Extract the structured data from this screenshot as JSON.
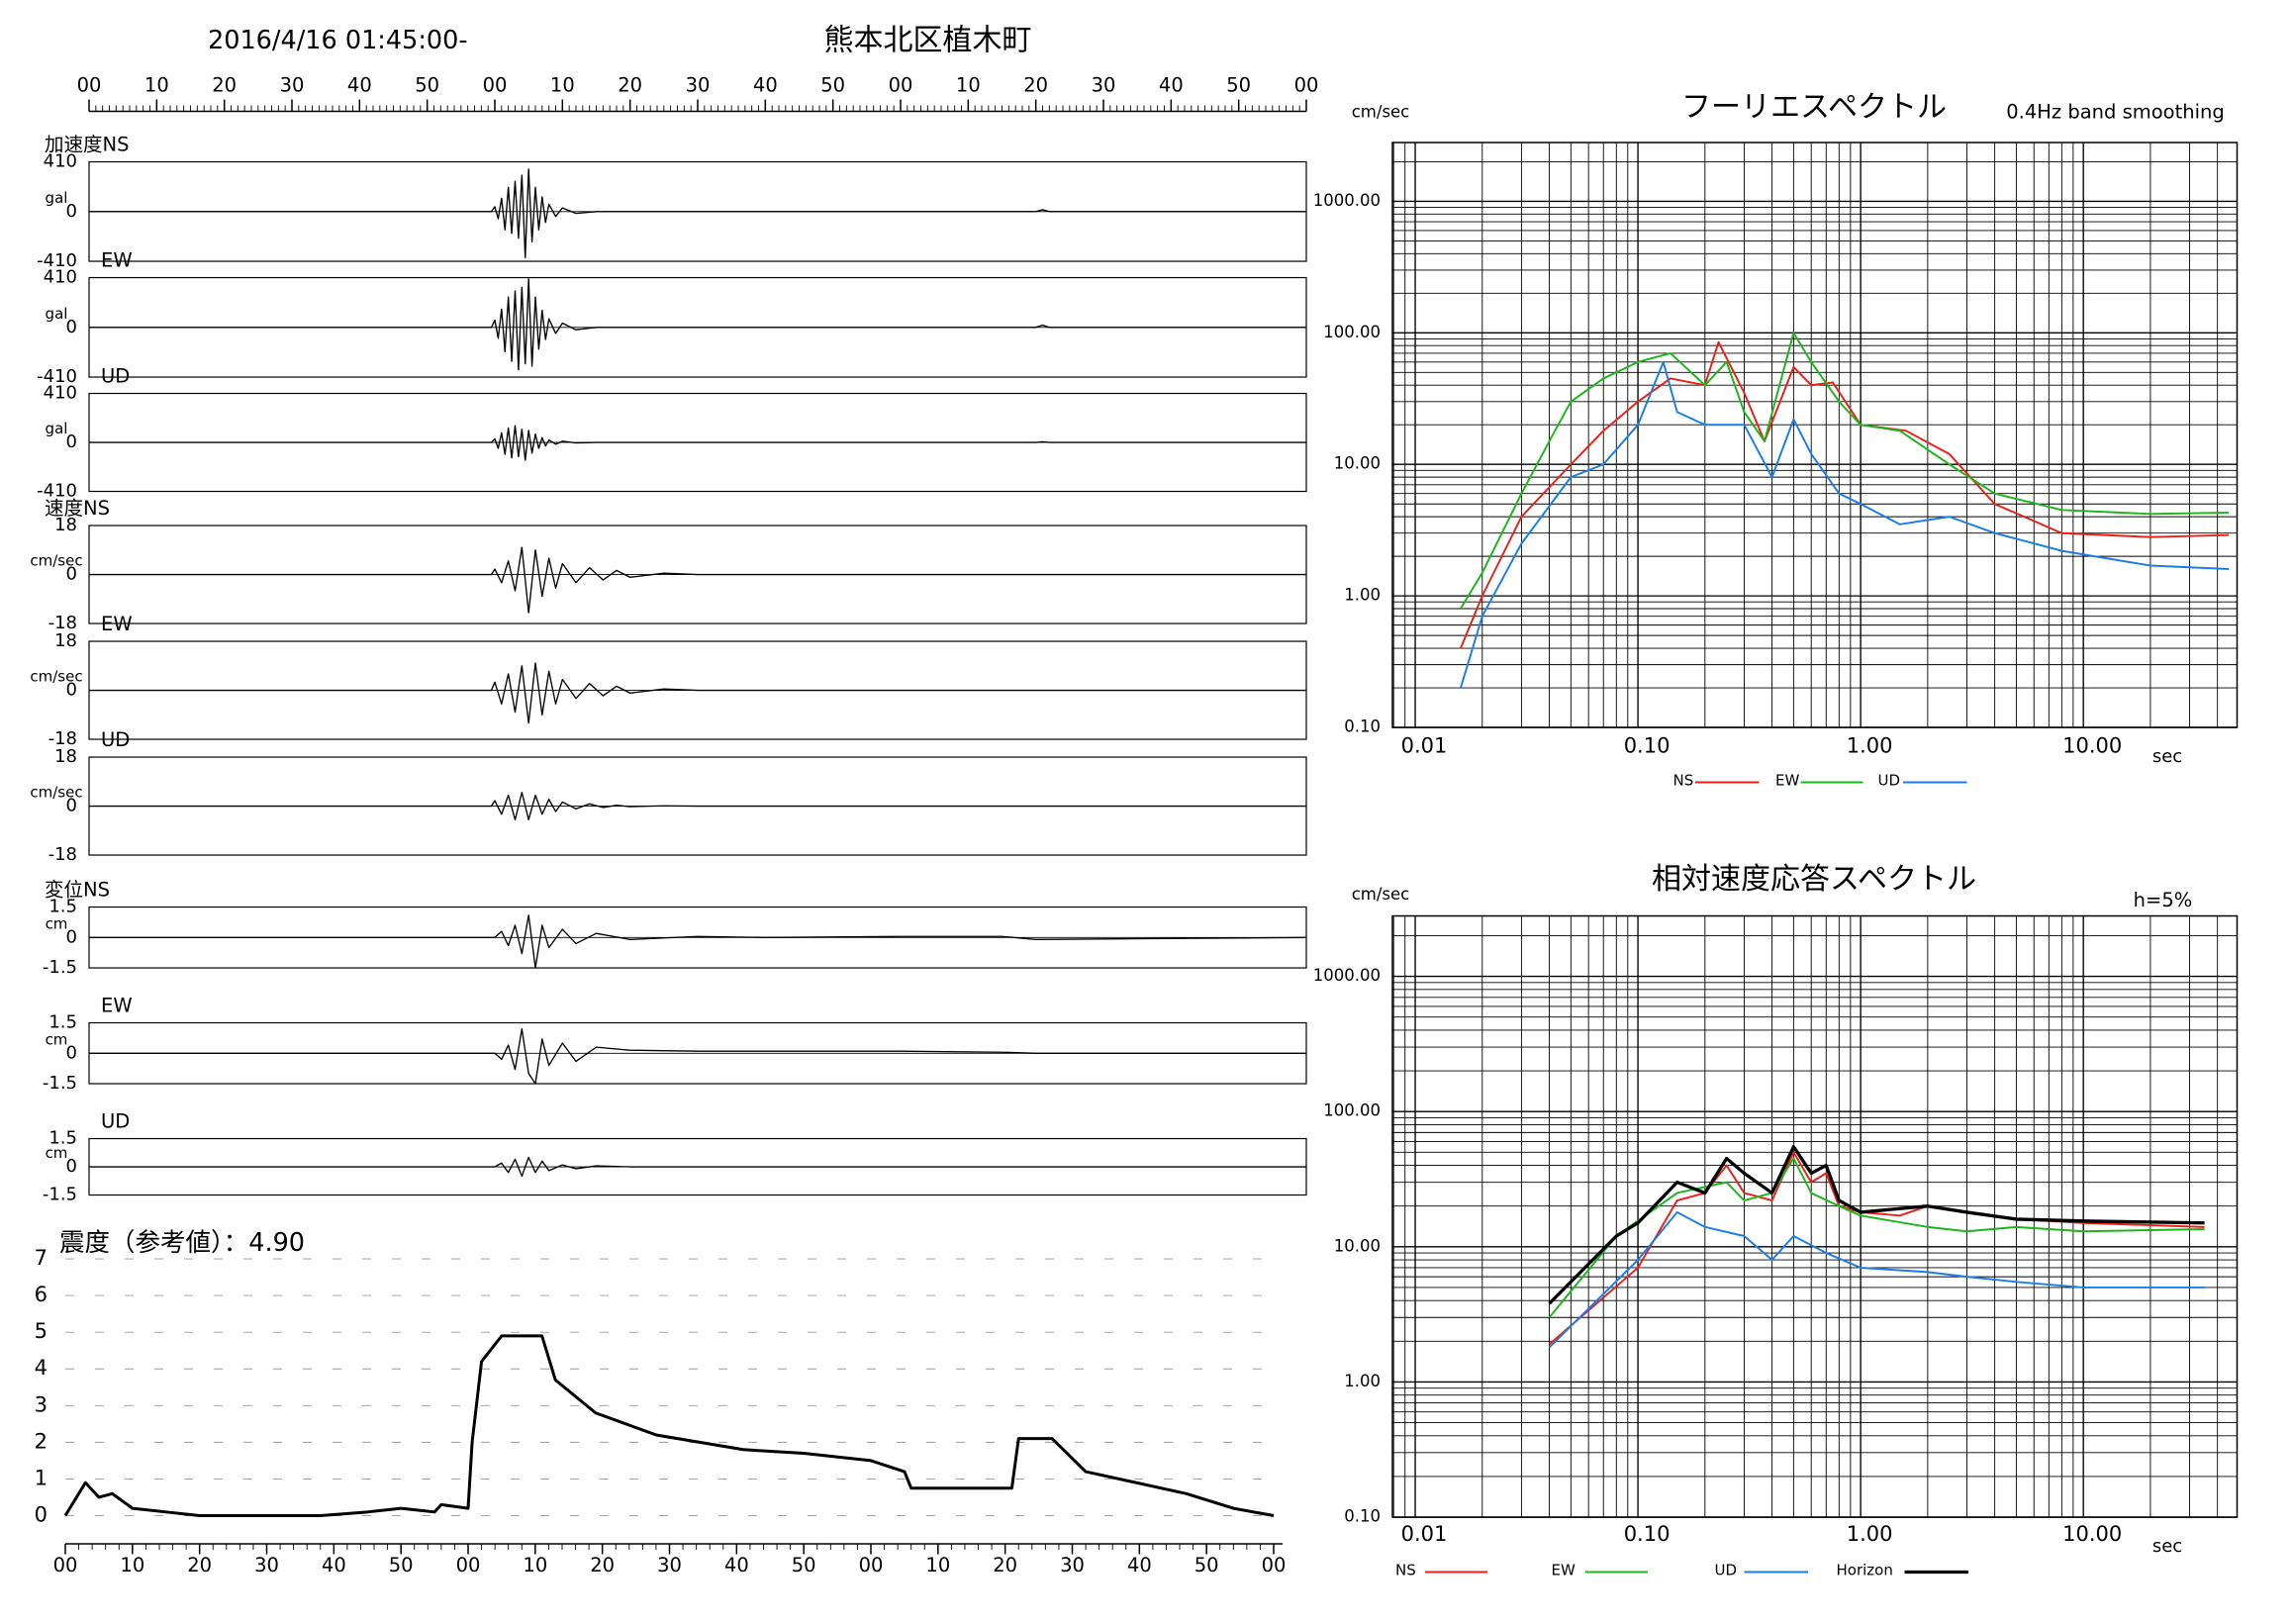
{
  "header": {
    "datetime": "2016/4/16 01:45:00-",
    "title": "熊本北区植木町"
  },
  "chart_data": [
    {
      "type": "line",
      "label": "加速度NS",
      "unit": "gal",
      "color": "#000000",
      "xlim": [
        0,
        180
      ],
      "ylim": [
        -410,
        410
      ],
      "yticks": [
        -410,
        0,
        410
      ],
      "xticks": [
        {
          "value": 0,
          "label": "00"
        },
        {
          "value": 10,
          "label": "10"
        },
        {
          "value": 20,
          "label": "20"
        },
        {
          "value": 30,
          "label": "30"
        },
        {
          "value": 40,
          "label": "40"
        },
        {
          "value": 50,
          "label": "50"
        },
        {
          "value": 60,
          "label": "00"
        },
        {
          "value": 70,
          "label": "10"
        },
        {
          "value": 80,
          "label": "20"
        },
        {
          "value": 90,
          "label": "30"
        },
        {
          "value": 100,
          "label": "40"
        },
        {
          "value": 110,
          "label": "50"
        },
        {
          "value": 120,
          "label": "00"
        },
        {
          "value": 130,
          "label": "10"
        },
        {
          "value": 140,
          "label": "20"
        },
        {
          "value": 150,
          "label": "30"
        },
        {
          "value": 160,
          "label": "40"
        },
        {
          "value": 170,
          "label": "50"
        },
        {
          "value": 180,
          "label": "00"
        }
      ],
      "x": [
        0,
        59.5,
        60,
        60.5,
        61,
        61.5,
        62,
        62.5,
        63,
        63.5,
        64,
        64.5,
        65,
        65.5,
        66,
        66.5,
        67,
        67.5,
        68,
        69,
        70,
        72,
        75,
        140,
        141,
        142,
        180
      ],
      "values": [
        0,
        0,
        40,
        -60,
        110,
        -150,
        200,
        -180,
        250,
        -220,
        300,
        -380,
        350,
        -250,
        200,
        -150,
        120,
        -90,
        60,
        -40,
        30,
        -15,
        0,
        0,
        15,
        0,
        0
      ]
    },
    {
      "type": "line",
      "label": "EW",
      "unit": "gal",
      "color": "#000000",
      "xlim": [
        0,
        180
      ],
      "ylim": [
        -410,
        410
      ],
      "yticks": [
        -410,
        0,
        410
      ],
      "x": [
        0,
        59.5,
        60,
        60.5,
        61,
        61.5,
        62,
        62.5,
        63,
        63.5,
        64,
        64.5,
        65,
        65.5,
        66,
        66.5,
        67,
        67.5,
        68,
        69,
        70,
        72,
        75,
        140,
        141,
        142,
        180
      ],
      "values": [
        0,
        0,
        60,
        -90,
        150,
        -200,
        250,
        -280,
        300,
        -350,
        330,
        -300,
        400,
        -320,
        250,
        -180,
        140,
        -100,
        70,
        -50,
        35,
        -20,
        0,
        0,
        18,
        0,
        0
      ]
    },
    {
      "type": "line",
      "label": "UD",
      "unit": "gal",
      "color": "#000000",
      "xlim": [
        0,
        180
      ],
      "ylim": [
        -410,
        410
      ],
      "yticks": [
        -410,
        0,
        410
      ],
      "x": [
        0,
        59.5,
        60,
        60.5,
        61,
        61.5,
        62,
        62.5,
        63,
        63.5,
        64,
        64.5,
        65,
        65.5,
        66,
        66.5,
        67,
        67.5,
        68,
        69,
        70,
        72,
        75,
        140,
        141,
        142,
        180
      ],
      "values": [
        0,
        0,
        30,
        -50,
        80,
        -100,
        120,
        -130,
        140,
        -120,
        110,
        -150,
        100,
        -90,
        70,
        -50,
        40,
        -30,
        20,
        -15,
        10,
        -5,
        0,
        0,
        5,
        0,
        0
      ]
    },
    {
      "type": "line",
      "label": "速度NS",
      "unit": "cm/sec",
      "color": "#000000",
      "xlim": [
        0,
        180
      ],
      "ylim": [
        -18,
        18
      ],
      "yticks": [
        -18,
        0,
        18
      ],
      "x": [
        0,
        59.5,
        60,
        61,
        62,
        63,
        64,
        65,
        66,
        67,
        68,
        69,
        70,
        72,
        74,
        76,
        78,
        80,
        85,
        90,
        180
      ],
      "values": [
        0,
        0,
        2,
        -3,
        5,
        -6,
        10,
        -14,
        9,
        -8,
        6,
        -5,
        4,
        -3,
        2.5,
        -2,
        1.5,
        -1,
        0.5,
        0,
        0
      ]
    },
    {
      "type": "line",
      "label": "EW",
      "unit": "cm/sec",
      "color": "#000000",
      "xlim": [
        0,
        180
      ],
      "ylim": [
        -18,
        18
      ],
      "yticks": [
        -18,
        0,
        18
      ],
      "x": [
        0,
        59.5,
        60,
        61,
        62,
        63,
        64,
        65,
        66,
        67,
        68,
        69,
        70,
        72,
        74,
        76,
        78,
        80,
        85,
        90,
        180
      ],
      "values": [
        0,
        0,
        3,
        -5,
        6,
        -8,
        9,
        -12,
        10,
        -9,
        7,
        -5,
        4,
        -3,
        2.5,
        -2,
        1.5,
        -1,
        0.5,
        0,
        0
      ]
    },
    {
      "type": "line",
      "label": "UD",
      "unit": "cm/sec",
      "color": "#000000",
      "xlim": [
        0,
        180
      ],
      "ylim": [
        -18,
        18
      ],
      "yticks": [
        -18,
        0,
        18
      ],
      "x": [
        0,
        59.5,
        60,
        61,
        62,
        63,
        64,
        65,
        66,
        67,
        68,
        69,
        70,
        72,
        74,
        76,
        78,
        80,
        85,
        90,
        180
      ],
      "values": [
        0,
        0,
        2,
        -3,
        4,
        -5,
        5,
        -5,
        4,
        -3,
        2.5,
        -2,
        1.5,
        -1,
        0.8,
        -0.5,
        0.3,
        -0.2,
        0.1,
        0,
        0
      ]
    },
    {
      "type": "line",
      "label": "変位NS",
      "unit": "cm",
      "color": "#000000",
      "xlim": [
        0,
        180
      ],
      "ylim": [
        -1.5,
        1.5
      ],
      "yticks": [
        -1.5,
        0,
        1.5
      ],
      "x": [
        0,
        60,
        61,
        62,
        63,
        64,
        65,
        66,
        67,
        68,
        70,
        72,
        75,
        80,
        90,
        100,
        120,
        135,
        140,
        180
      ],
      "values": [
        0,
        0,
        0.3,
        -0.4,
        0.6,
        -0.8,
        1.1,
        -1.5,
        0.6,
        -0.5,
        0.4,
        -0.3,
        0.2,
        -0.1,
        0.05,
        0,
        0.05,
        0.05,
        -0.1,
        0
      ]
    },
    {
      "type": "line",
      "label": "EW",
      "unit": "cm",
      "color": "#000000",
      "xlim": [
        0,
        180
      ],
      "ylim": [
        -1.5,
        1.5
      ],
      "yticks": [
        -1.5,
        0,
        1.5
      ],
      "x": [
        0,
        60,
        61,
        62,
        63,
        64,
        65,
        66,
        67,
        68,
        70,
        72,
        75,
        80,
        90,
        100,
        120,
        135,
        140,
        180
      ],
      "values": [
        0,
        0,
        -0.3,
        0.4,
        -0.8,
        1.2,
        -1,
        -1.5,
        0.7,
        -0.6,
        0.5,
        -0.4,
        0.3,
        0.15,
        0.1,
        0.1,
        0.1,
        0.05,
        0,
        0
      ]
    },
    {
      "type": "line",
      "label": "UD",
      "unit": "cm",
      "color": "#000000",
      "xlim": [
        0,
        180
      ],
      "ylim": [
        -1.5,
        1.5
      ],
      "yticks": [
        -1.5,
        0,
        1.5
      ],
      "x": [
        0,
        60,
        61,
        62,
        63,
        64,
        65,
        66,
        67,
        68,
        70,
        72,
        75,
        80,
        90,
        100,
        120,
        135,
        140,
        180
      ],
      "values": [
        0,
        0,
        0.2,
        -0.3,
        0.4,
        -0.5,
        0.5,
        -0.3,
        0.3,
        -0.2,
        0.1,
        -0.1,
        0.05,
        0,
        0,
        0,
        0,
        0,
        0,
        0
      ]
    },
    {
      "type": "line",
      "title": "震度（参考値）：4.90",
      "color": "#000000",
      "xlim": [
        0,
        180
      ],
      "ylim": [
        0,
        7
      ],
      "yticks": [
        0,
        1,
        2,
        3,
        4,
        5,
        6,
        7
      ],
      "xticks": [
        {
          "value": 0,
          "label": "00"
        },
        {
          "value": 10,
          "label": "10"
        },
        {
          "value": 20,
          "label": "20"
        },
        {
          "value": 30,
          "label": "30"
        },
        {
          "value": 40,
          "label": "40"
        },
        {
          "value": 50,
          "label": "50"
        },
        {
          "value": 60,
          "label": "00"
        },
        {
          "value": 70,
          "label": "10"
        },
        {
          "value": 80,
          "label": "20"
        },
        {
          "value": 90,
          "label": "30"
        },
        {
          "value": 100,
          "label": "40"
        },
        {
          "value": 110,
          "label": "50"
        },
        {
          "value": 120,
          "label": "00"
        },
        {
          "value": 130,
          "label": "10"
        },
        {
          "value": 140,
          "label": "20"
        },
        {
          "value": 150,
          "label": "30"
        },
        {
          "value": 160,
          "label": "40"
        },
        {
          "value": 170,
          "label": "50"
        },
        {
          "value": 180,
          "label": "00"
        }
      ],
      "x": [
        0,
        3,
        5,
        7,
        10,
        15,
        20,
        38,
        45,
        50,
        55,
        56,
        60,
        60.6,
        62,
        65,
        71,
        73,
        79,
        88,
        101,
        110,
        120,
        125,
        126,
        141,
        142,
        147,
        152,
        167,
        174,
        180
      ],
      "values": [
        0,
        0.9,
        0.5,
        0.6,
        0.2,
        0.1,
        0,
        0,
        0.1,
        0.2,
        0.1,
        0.3,
        0.2,
        2,
        4.2,
        4.9,
        4.9,
        3.7,
        2.8,
        2.2,
        1.8,
        1.7,
        1.5,
        1.2,
        0.75,
        0.75,
        2.1,
        2.1,
        1.2,
        0.6,
        0.2,
        0
      ]
    },
    {
      "type": "line",
      "title": "フーリエスペクトル",
      "subtitle": "0.4Hz band smoothing",
      "ylabel": "cm/sec",
      "xlabel": "sec",
      "xscale": "log",
      "yscale": "log",
      "grid": true,
      "xlim": [
        0.0079,
        49
      ],
      "ylim": [
        0.1,
        2800
      ],
      "xticks": [
        0.01,
        {
          "value": 0.1,
          "label": "0.10"
        },
        {
          "value": 1,
          "label": "1.00"
        },
        {
          "value": 10,
          "label": "10.00"
        }
      ],
      "yticks": [
        {
          "value": 0.1,
          "label": "0.10"
        },
        {
          "value": 1,
          "label": "1.00"
        },
        {
          "value": 10,
          "label": "10.00"
        },
        {
          "value": 100,
          "label": "100.00"
        },
        {
          "value": 1000,
          "label": "1000.00"
        }
      ],
      "series": [
        {
          "name": "NS",
          "color": "#e8201a",
          "x": [
            0.016,
            0.02,
            0.03,
            0.05,
            0.07,
            0.1,
            0.14,
            0.2,
            0.23,
            0.3,
            0.37,
            0.5,
            0.6,
            0.75,
            1,
            1.6,
            2.5,
            4,
            8,
            20,
            45
          ],
          "values": [
            0.4,
            1,
            4,
            10,
            18,
            30,
            45,
            40,
            85,
            35,
            15,
            55,
            40,
            42,
            20,
            18,
            12,
            5,
            3,
            2.8,
            2.9
          ]
        },
        {
          "name": "EW",
          "color": "#1cb51c",
          "x": [
            0.016,
            0.02,
            0.03,
            0.04,
            0.05,
            0.07,
            0.1,
            0.14,
            0.2,
            0.25,
            0.3,
            0.37,
            0.5,
            0.6,
            0.8,
            1,
            1.5,
            2.5,
            4,
            8,
            20,
            45
          ],
          "values": [
            0.8,
            1.5,
            6,
            15,
            30,
            45,
            60,
            70,
            40,
            60,
            25,
            15,
            100,
            60,
            30,
            20,
            18,
            10,
            6,
            4.5,
            4.2,
            4.3
          ]
        },
        {
          "name": "UD",
          "color": "#1a7de8",
          "x": [
            0.016,
            0.02,
            0.03,
            0.05,
            0.07,
            0.1,
            0.13,
            0.15,
            0.2,
            0.3,
            0.4,
            0.5,
            0.6,
            0.8,
            1,
            1.5,
            2.5,
            4,
            8,
            20,
            45
          ],
          "values": [
            0.2,
            0.7,
            2.5,
            8,
            10,
            20,
            60,
            25,
            20,
            20,
            8,
            22,
            12,
            6,
            5,
            3.5,
            4,
            3,
            2.2,
            1.7,
            1.6
          ]
        }
      ]
    },
    {
      "type": "line",
      "title": "相対速度応答スペクトル",
      "subtitle": "h=5%",
      "ylabel": "cm/sec",
      "xlabel": "sec",
      "xscale": "log",
      "yscale": "log",
      "grid": true,
      "xlim": [
        0.0079,
        49
      ],
      "ylim": [
        0.1,
        2800
      ],
      "xticks": [
        0.01,
        {
          "value": 0.1,
          "label": "0.10"
        },
        {
          "value": 1,
          "label": "1.00"
        },
        {
          "value": 10,
          "label": "10.00"
        }
      ],
      "yticks": [
        {
          "value": 0.1,
          "label": "0.10"
        },
        {
          "value": 1,
          "label": "1.00"
        },
        {
          "value": 10,
          "label": "10.00"
        },
        {
          "value": 100,
          "label": "100.00"
        },
        {
          "value": 1000,
          "label": "1000.00"
        }
      ],
      "series": [
        {
          "name": "NS",
          "color": "#e8201a",
          "x": [
            0.04,
            0.1,
            0.15,
            0.2,
            0.25,
            0.3,
            0.4,
            0.5,
            0.6,
            0.7,
            0.8,
            1,
            1.5,
            2,
            3,
            5,
            10,
            35
          ],
          "values": [
            1.9,
            7,
            22,
            25,
            40,
            25,
            22,
            50,
            30,
            35,
            20,
            18,
            17,
            20,
            18,
            16,
            15,
            14
          ]
        },
        {
          "name": "EW",
          "color": "#1cb51c",
          "x": [
            0.04,
            0.08,
            0.15,
            0.25,
            0.3,
            0.4,
            0.5,
            0.6,
            0.8,
            1,
            2,
            3,
            5,
            10,
            35
          ],
          "values": [
            3,
            12,
            25,
            30,
            22,
            25,
            45,
            25,
            20,
            17,
            14,
            13,
            14,
            13,
            13.5
          ]
        },
        {
          "name": "UD",
          "color": "#1a7de8",
          "x": [
            0.04,
            0.1,
            0.15,
            0.2,
            0.3,
            0.4,
            0.5,
            0.7,
            1,
            2,
            3,
            5,
            10,
            35
          ],
          "values": [
            1.8,
            8,
            18,
            14,
            12,
            8,
            12,
            9,
            7,
            6.5,
            6,
            5.5,
            5,
            5
          ]
        },
        {
          "name": "Horizon",
          "color": "#000000",
          "x": [
            0.04,
            0.08,
            0.1,
            0.15,
            0.2,
            0.25,
            0.3,
            0.4,
            0.5,
            0.6,
            0.7,
            0.8,
            1,
            2,
            3,
            5,
            10,
            35
          ],
          "values": [
            3.8,
            12,
            15,
            30,
            25,
            45,
            35,
            25,
            55,
            35,
            40,
            22,
            18,
            20,
            18,
            16,
            15.5,
            15
          ]
        }
      ]
    }
  ]
}
